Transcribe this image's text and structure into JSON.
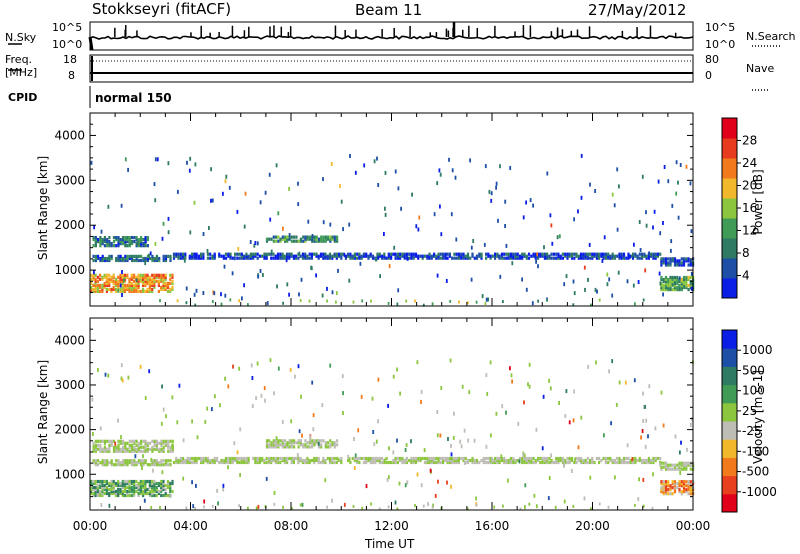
{
  "header": {
    "station": "Stokkseyri (fitACF)",
    "beam": "Beam 11",
    "date": "27/May/2012"
  },
  "nsky": {
    "left_label": "N.Sky",
    "right_label": "N.Search",
    "left_ticks": [
      "10^5",
      "10^0"
    ],
    "right_ticks": [
      "10^5",
      "10^0"
    ]
  },
  "freq": {
    "left_label": "Freq.",
    "unit": "[MHz]",
    "left_ticks": [
      "18",
      "8"
    ],
    "right_label": "Nave",
    "right_ticks": [
      "80",
      "0"
    ]
  },
  "cpid": {
    "label": "CPID",
    "mode": "normal 150"
  },
  "colors": {
    "axis": "#000000",
    "power_scatter": "#2746c9",
    "velocity_ground": "#bdbdb5"
  },
  "chart_data": [
    {
      "type": "heatmap",
      "name": "power",
      "ylabel": "Slant Range [km]",
      "y_ticks": [
        "1000",
        "2000",
        "3000",
        "4000"
      ],
      "ylim": [
        200,
        4500
      ],
      "xlim": [
        0,
        24
      ],
      "x_ticks": [
        "00:00",
        "04:00",
        "08:00",
        "12:00",
        "16:00",
        "20:00",
        "00:00"
      ],
      "colorbar": {
        "label": "Power [dB]",
        "ticks": [
          "28",
          "24",
          "20",
          "16",
          "12",
          "8",
          "4"
        ],
        "range": [
          0,
          30
        ],
        "colors": [
          "#0a1ee6",
          "#1e4fa6",
          "#2e7a63",
          "#3f9b55",
          "#8cc63f",
          "#f2b82b",
          "#f07a1c",
          "#e83a1e",
          "#e0001a"
        ]
      },
      "regions": [
        {
          "t0": 0.1,
          "t1": 2.3,
          "r0": 1580,
          "r1": 1780,
          "level": 8
        },
        {
          "t0": 0.1,
          "t1": 3.2,
          "r0": 1250,
          "r1": 1350,
          "level": 6
        },
        {
          "t0": 0.0,
          "t1": 3.3,
          "r0": 560,
          "r1": 950,
          "level": 20
        },
        {
          "t0": 7.0,
          "t1": 9.8,
          "r0": 1680,
          "r1": 1800,
          "level": 10
        },
        {
          "t0": 3.3,
          "t1": 22.7,
          "r0": 1300,
          "r1": 1420,
          "level": 4
        },
        {
          "t0": 22.7,
          "t1": 24.0,
          "r0": 600,
          "r1": 900,
          "level": 12
        },
        {
          "t0": 22.7,
          "t1": 24.0,
          "r0": 1150,
          "r1": 1300,
          "level": 5
        }
      ],
      "xlabel": ""
    },
    {
      "type": "heatmap",
      "name": "velocity",
      "ylabel": "Slant Range [km]",
      "y_ticks": [
        "1000",
        "2000",
        "3000",
        "4000"
      ],
      "ylim": [
        200,
        4500
      ],
      "xlim": [
        0,
        24
      ],
      "x_ticks": [
        "00:00",
        "04:00",
        "08:00",
        "12:00",
        "16:00",
        "20:00",
        "00:00"
      ],
      "xlabel": "Time UT",
      "colorbar": {
        "label": "Velocity [m s-1]",
        "ticks": [
          "1000",
          "500",
          "100",
          "25",
          "-25",
          "-100",
          "-500",
          "-1000"
        ],
        "range": [
          -1000,
          1000
        ],
        "colors": [
          "#e0001a",
          "#e8401e",
          "#f07a1c",
          "#f2b82b",
          "#bdbdb5",
          "#8cc63f",
          "#3f9b55",
          "#2e7a63",
          "#1e4fa6",
          "#0a1ee6"
        ]
      },
      "regions": [
        {
          "t0": 0.1,
          "t1": 3.3,
          "r0": 1550,
          "r1": 1800,
          "level": 0
        },
        {
          "t0": 0.1,
          "t1": 3.2,
          "r0": 1250,
          "r1": 1350,
          "level": 0
        },
        {
          "t0": 0.0,
          "t1": 3.3,
          "r0": 560,
          "r1": 900,
          "level": 250
        },
        {
          "t0": 7.0,
          "t1": 9.8,
          "r0": 1650,
          "r1": 1800,
          "level": 0
        },
        {
          "t0": 3.3,
          "t1": 22.7,
          "r0": 1300,
          "r1": 1430,
          "level": 0
        },
        {
          "t0": 22.7,
          "t1": 24.0,
          "r0": 600,
          "r1": 900,
          "level": -400
        },
        {
          "t0": 22.7,
          "t1": 24.0,
          "r0": 1150,
          "r1": 1300,
          "level": 0
        }
      ]
    }
  ]
}
